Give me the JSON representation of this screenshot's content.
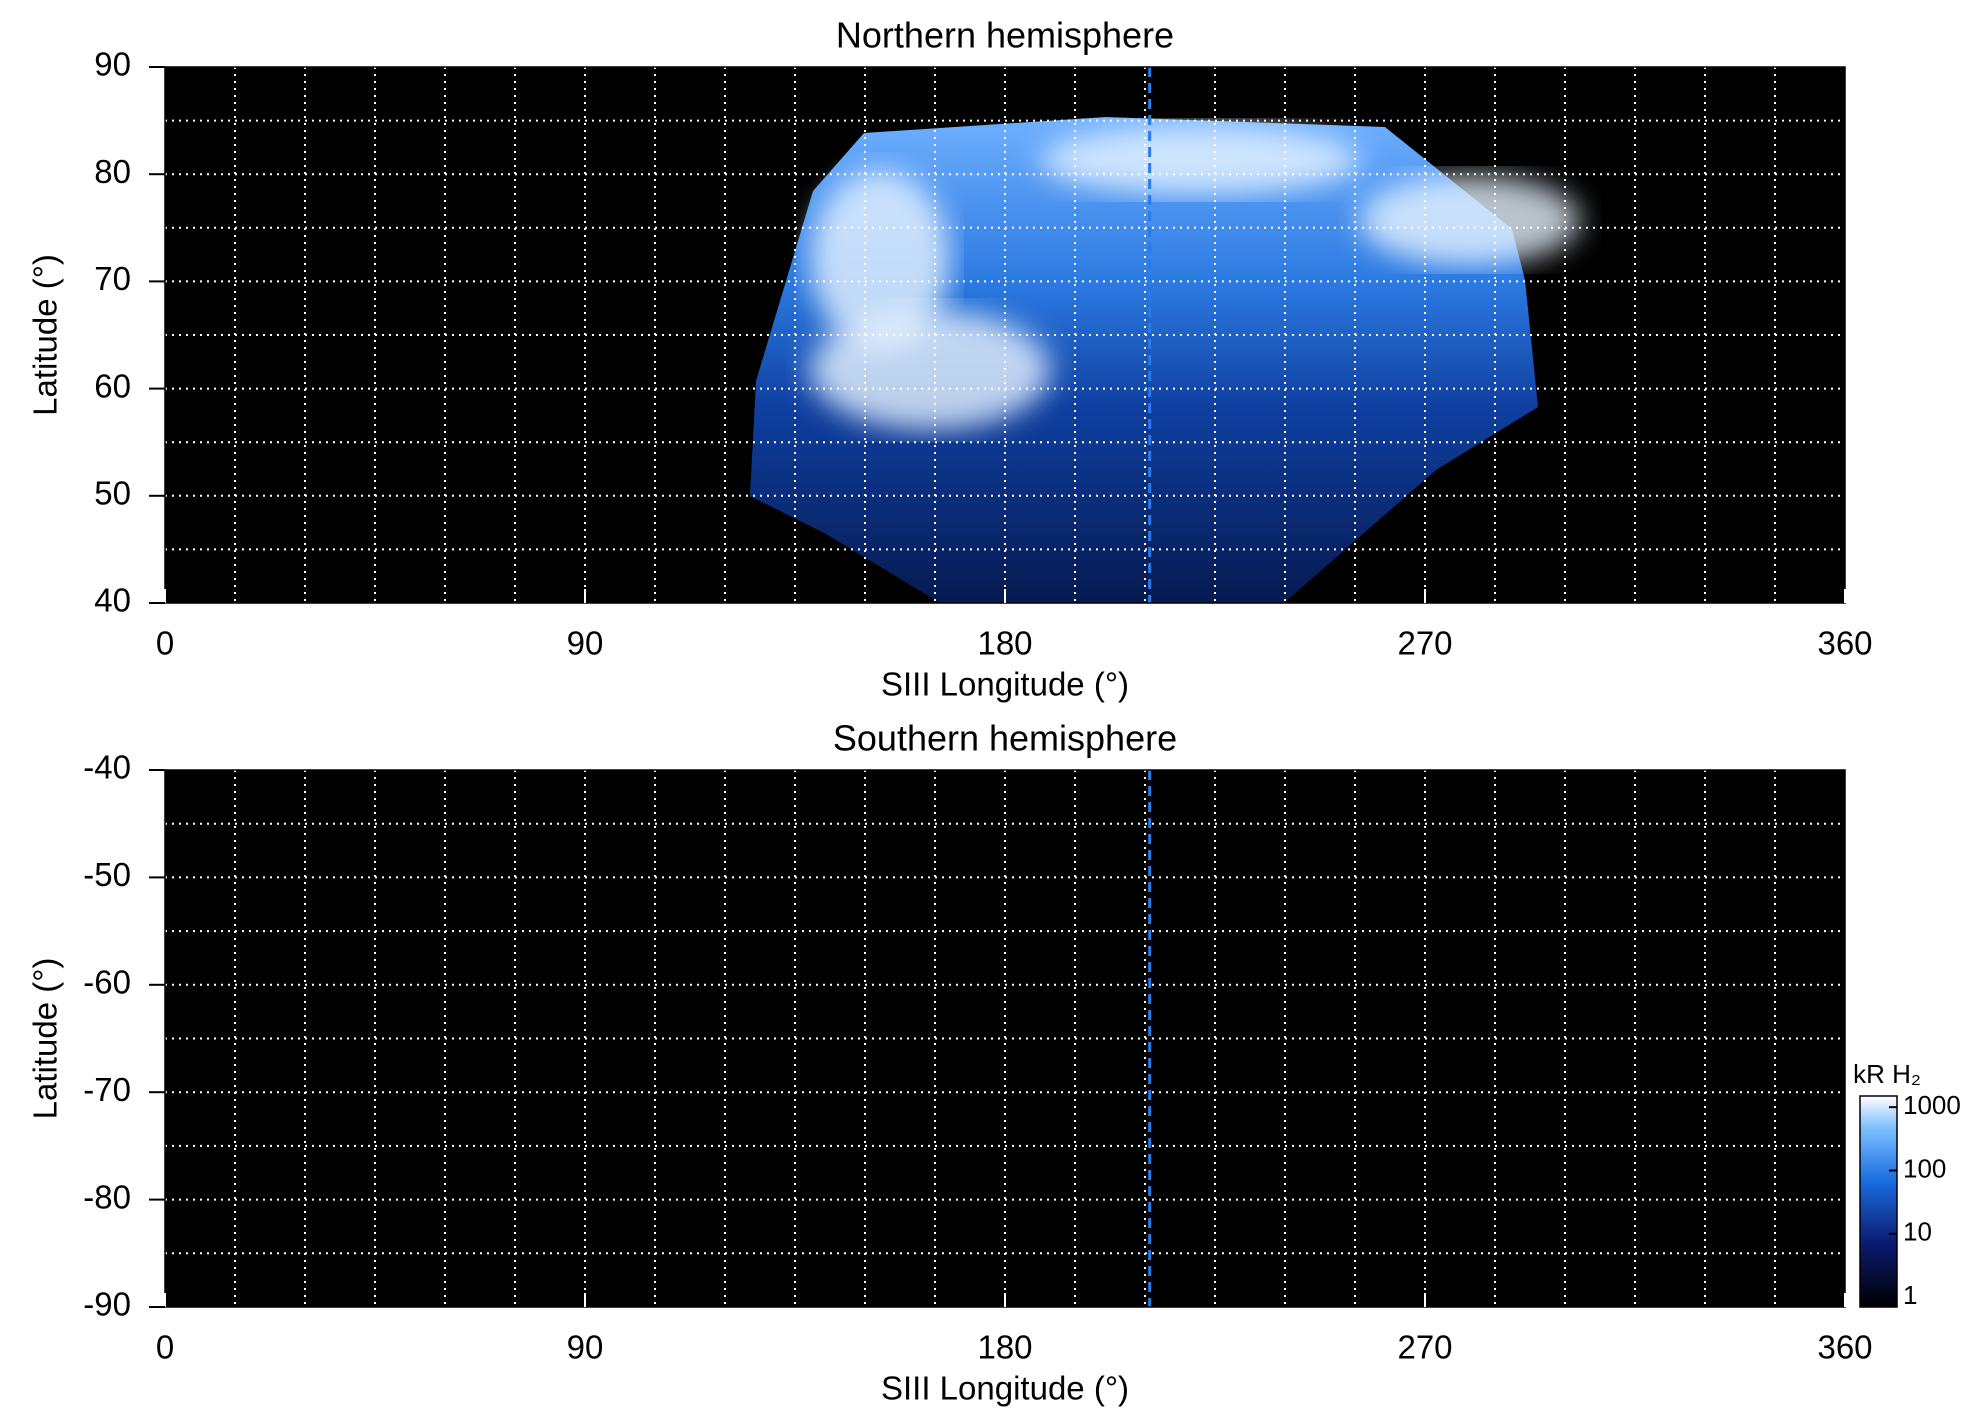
{
  "chart_data": [
    {
      "type": "map",
      "title": "Northern hemisphere",
      "xlabel": "SIII Longitude (°)",
      "ylabel": "Latitude (°)",
      "xlim": [
        0,
        360
      ],
      "xticks": [
        0,
        90,
        180,
        270,
        360
      ],
      "ylim": [
        40,
        90
      ],
      "yticks": [
        40,
        50,
        60,
        70,
        80,
        90
      ],
      "xgrid": [
        15,
        30,
        45,
        60,
        75,
        90,
        105,
        120,
        135,
        150,
        165,
        180,
        195,
        210,
        225,
        240,
        255,
        270,
        285,
        300,
        315,
        330,
        345
      ],
      "ygrid": [
        45,
        50,
        55,
        60,
        65,
        70,
        75,
        80,
        85
      ],
      "vline_x": 211
    },
    {
      "type": "map",
      "title": "Southern hemisphere",
      "xlabel": "SIII Longitude (°)",
      "ylabel": "Latitude (°)",
      "xlim": [
        0,
        360
      ],
      "xticks": [
        0,
        90,
        180,
        270,
        360
      ],
      "ylim": [
        -90,
        -40
      ],
      "yticks": [
        -40,
        -50,
        -60,
        -70,
        -80,
        -90
      ],
      "xgrid": [
        15,
        30,
        45,
        60,
        75,
        90,
        105,
        120,
        135,
        150,
        165,
        180,
        195,
        210,
        225,
        240,
        255,
        270,
        285,
        300,
        315,
        330,
        345
      ],
      "ygrid": [
        -45,
        -50,
        -55,
        -60,
        -65,
        -70,
        -75,
        -80,
        -85
      ],
      "vline_x": 211,
      "colorbar": {
        "label": "kR H₂",
        "log": true,
        "lim": [
          0.7,
          1500
        ],
        "ticks": [
          1,
          10,
          100,
          1000
        ]
      }
    }
  ]
}
